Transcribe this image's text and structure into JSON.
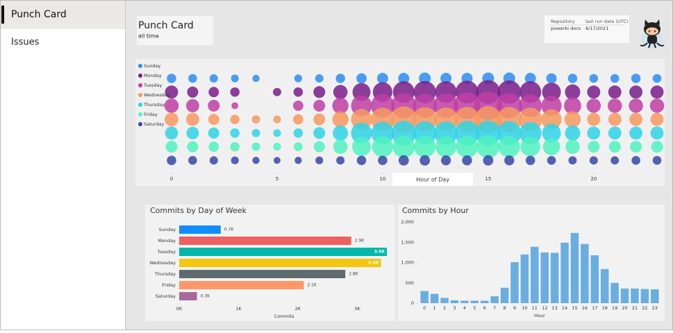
{
  "nav": {
    "items": [
      "Punch Card",
      "Issues"
    ]
  },
  "header": {
    "title": "Punch Card",
    "subtitle": "all time"
  },
  "info": {
    "headers": [
      "Repository",
      "last run date (UTC)"
    ],
    "row": [
      "powerbi docs",
      "6/17/2021"
    ]
  },
  "chart_data": [
    {
      "type": "bubble",
      "x_label": "Hour of Day",
      "x": [
        0,
        1,
        2,
        3,
        4,
        5,
        6,
        7,
        8,
        9,
        10,
        11,
        12,
        13,
        14,
        15,
        16,
        17,
        18,
        19,
        20,
        21,
        22,
        23
      ],
      "xlim": [
        0,
        23
      ],
      "xticks": [
        0,
        5,
        10,
        15,
        20
      ],
      "series": [
        {
          "name": "Sunday",
          "color": "#2a8ef2",
          "values": [
            15,
            12,
            10,
            8,
            6,
            null,
            8,
            10,
            15,
            20,
            25,
            25,
            30,
            25,
            25,
            30,
            30,
            25,
            20,
            15,
            12,
            12,
            15,
            12
          ]
        },
        {
          "name": "Monday",
          "color": "#7a1d8a",
          "values": [
            40,
            25,
            20,
            15,
            null,
            10,
            15,
            30,
            50,
            90,
            110,
            140,
            150,
            140,
            160,
            180,
            170,
            140,
            100,
            60,
            40,
            40,
            40,
            40
          ]
        },
        {
          "name": "Tuesday",
          "color": "#c03ea6",
          "values": [
            50,
            40,
            30,
            5,
            null,
            null,
            20,
            30,
            70,
            130,
            170,
            200,
            180,
            190,
            230,
            260,
            200,
            160,
            120,
            80,
            50,
            50,
            50,
            50
          ]
        },
        {
          "name": "Wednesday",
          "color": "#f7995f",
          "values": [
            45,
            40,
            25,
            15,
            10,
            8,
            20,
            30,
            70,
            130,
            170,
            220,
            190,
            180,
            200,
            230,
            200,
            170,
            120,
            70,
            40,
            40,
            40,
            40
          ]
        },
        {
          "name": "Thursday",
          "color": "#2fd3e8",
          "values": [
            40,
            35,
            25,
            15,
            10,
            8,
            15,
            30,
            60,
            130,
            160,
            190,
            170,
            170,
            190,
            200,
            180,
            150,
            100,
            60,
            40,
            40,
            40,
            40
          ]
        },
        {
          "name": "Friday",
          "color": "#4ff2c0",
          "values": [
            30,
            25,
            20,
            15,
            10,
            8,
            12,
            25,
            50,
            100,
            130,
            150,
            140,
            130,
            150,
            160,
            140,
            110,
            80,
            50,
            30,
            30,
            30,
            30
          ]
        },
        {
          "name": "Saturday",
          "color": "#3847a8",
          "values": [
            15,
            12,
            10,
            8,
            6,
            5,
            6,
            8,
            10,
            15,
            15,
            20,
            20,
            18,
            18,
            20,
            18,
            15,
            12,
            10,
            10,
            10,
            12,
            12
          ]
        }
      ]
    },
    {
      "type": "hbar",
      "title": "Commits by Day of Week",
      "x_label": "Commits",
      "categories": [
        "Sunday",
        "Monday",
        "Tuesday",
        "Wednesday",
        "Thursday",
        "Friday",
        "Saturday"
      ],
      "values": [
        700,
        2900,
        3500,
        3400,
        2800,
        2100,
        300
      ],
      "value_labels": [
        "0.7K",
        "2.9K",
        "3.5K",
        "3.4K",
        "2.8K",
        "2.1K",
        "0.3K"
      ],
      "colors": [
        "#118dff",
        "#f05f5f",
        "#01b8aa",
        "#f2c80f",
        "#5f6b6d",
        "#fe9666",
        "#a66999"
      ],
      "xlim": [
        0,
        3500
      ],
      "xticks": [
        {
          "value": 0,
          "label": "0K"
        },
        {
          "value": 1000,
          "label": "1K"
        },
        {
          "value": 2000,
          "label": "2K"
        },
        {
          "value": 3000,
          "label": "3K"
        }
      ]
    },
    {
      "type": "column",
      "title": "Commits by Hour",
      "x_label": "Hour",
      "categories": [
        0,
        1,
        2,
        3,
        4,
        5,
        6,
        7,
        8,
        9,
        10,
        11,
        12,
        13,
        14,
        15,
        16,
        17,
        18,
        19,
        20,
        21,
        22,
        23
      ],
      "values": [
        300,
        230,
        130,
        70,
        60,
        60,
        60,
        170,
        380,
        1010,
        1200,
        1390,
        1250,
        1240,
        1490,
        1730,
        1460,
        1180,
        840,
        500,
        360,
        360,
        350,
        340
      ],
      "color": "#6aaee0",
      "ylim": [
        0,
        2000
      ],
      "yticks": [
        0,
        500,
        {
          "value": 1000,
          "label": "1,000"
        },
        {
          "value": 1500,
          "label": "1,500"
        },
        {
          "value": 2000,
          "label": "2,000"
        }
      ]
    }
  ]
}
